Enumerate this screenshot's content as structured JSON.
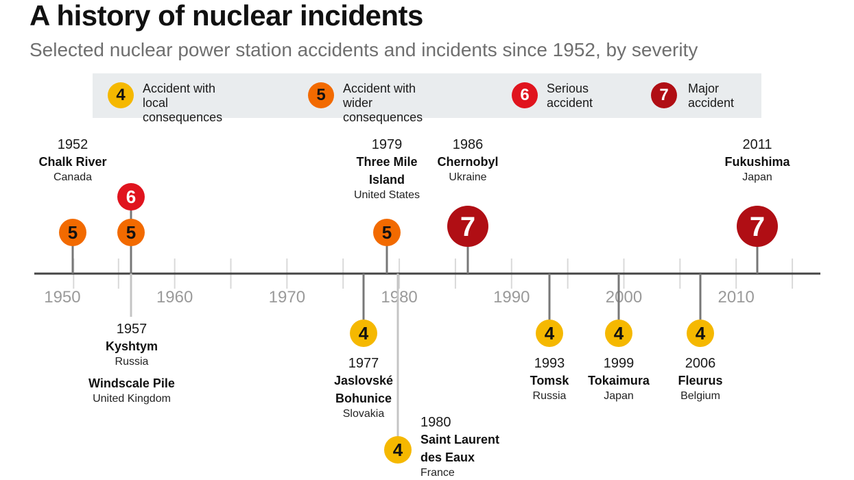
{
  "title": "A history of nuclear incidents",
  "subtitle": "Selected nuclear power station accidents and incidents since 1952, by severity",
  "legend": [
    {
      "level": "4",
      "label": "Accident with local\nconsequences",
      "color": "#f5b800"
    },
    {
      "level": "5",
      "label": "Accident with wider\nconsequences",
      "color": "#f26a00"
    },
    {
      "level": "6",
      "label": "Serious\naccident",
      "color": "#e0141e"
    },
    {
      "level": "7",
      "label": "Major\naccident",
      "color": "#b00e14"
    }
  ],
  "colors": {
    "4": "#f5b800",
    "5": "#f26a00",
    "6": "#e0141e",
    "7": "#b00e14"
  },
  "axis": {
    "min_year": 1947.5,
    "max_year": 2017.5,
    "labels": [
      "1950",
      "1960",
      "1970",
      "1980",
      "1990",
      "2000",
      "2010"
    ],
    "label_years": [
      1950,
      1960,
      1970,
      1980,
      1990,
      2000,
      2010
    ],
    "tick_years": [
      1951,
      1955,
      1960,
      1965,
      1970,
      1975,
      1980,
      1985,
      1990,
      1995,
      2000,
      2005,
      2010,
      2015
    ]
  },
  "events": [
    {
      "id": "chalk-river",
      "year": "1952",
      "year_value": 1952.0,
      "name": "Chalk River",
      "country": "Canada",
      "level": "5",
      "side": "above"
    },
    {
      "id": "kyshtym",
      "year": "1957",
      "year_value": 1957.2,
      "name": "Kyshtym",
      "country": "Russia",
      "level": "6",
      "side": "above"
    },
    {
      "id": "windscale-pile",
      "year": "1957",
      "year_value": 1957.2,
      "name": "Windscale Pile",
      "country": "United Kingdom",
      "level": "5",
      "side": "above"
    },
    {
      "id": "jaslovske-bohunice",
      "year": "1977",
      "year_value": 1977.0,
      "name": "Jaslovské\nBohunice",
      "country": "Slovakia",
      "level": "4",
      "side": "below"
    },
    {
      "id": "three-mile-island",
      "year": "1979",
      "year_value": 1979.0,
      "name": "Three Mile\nIsland",
      "country": "United States",
      "level": "5",
      "side": "above"
    },
    {
      "id": "saint-laurent",
      "year": "1980",
      "year_value": 1980.0,
      "name": "Saint Laurent\ndes Eaux",
      "country": "France",
      "level": "4",
      "side": "below"
    },
    {
      "id": "chernobyl",
      "year": "1986",
      "year_value": 1986.0,
      "name": "Chernobyl",
      "country": "Ukraine",
      "level": "7",
      "side": "above"
    },
    {
      "id": "tomsk",
      "year": "1993",
      "year_value": 1993.0,
      "name": "Tomsk",
      "country": "Russia",
      "level": "4",
      "side": "below"
    },
    {
      "id": "tokaimura",
      "year": "1999",
      "year_value": 1999.0,
      "name": "Tokaimura",
      "country": "Japan",
      "level": "4",
      "side": "below"
    },
    {
      "id": "fleurus",
      "year": "2006",
      "year_value": 2006.0,
      "name": "Fleurus",
      "country": "Belgium",
      "level": "4",
      "side": "below"
    },
    {
      "id": "fukushima",
      "year": "2011",
      "year_value": 2011.0,
      "name": "Fukushima",
      "country": "Japan",
      "level": "7",
      "side": "above"
    }
  ]
}
